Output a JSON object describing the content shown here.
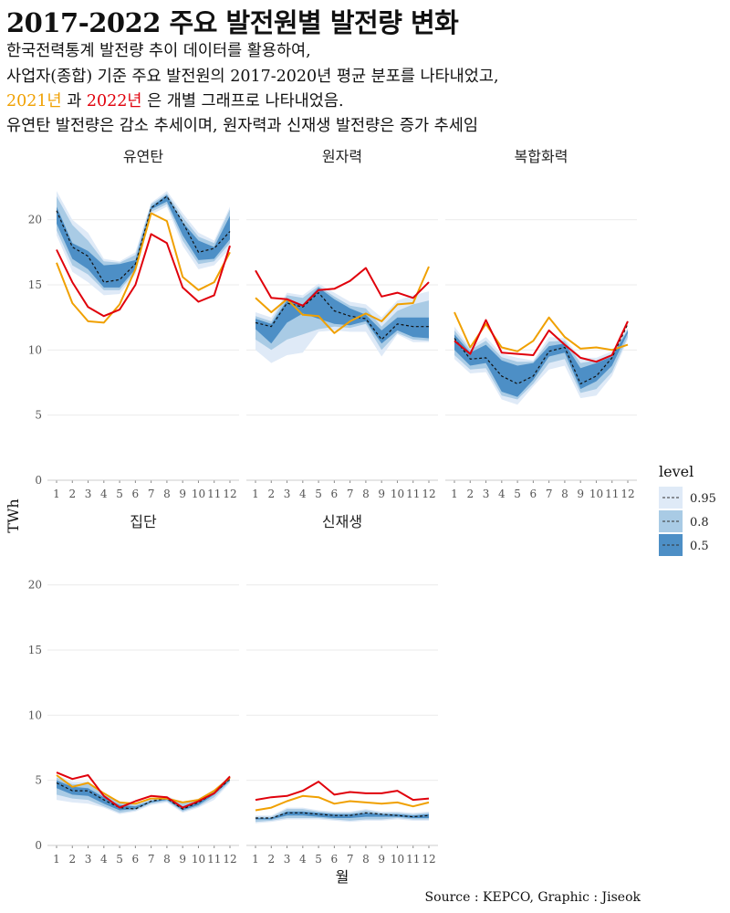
{
  "header": {
    "title": "2017-2022 주요 발전원별 발전량 변화",
    "subtitle_line1": "한국전력통계 발전량 추이 데이터를 활용하여,",
    "subtitle_line2": "사업자(종합) 기준 주요 발전원의 2017-2020년  평균 분포를 나타내었고,",
    "subtitle_line3_2021": "2021년",
    "subtitle_line3_mid": " 과  ",
    "subtitle_line3_2022": "2022년",
    "subtitle_line3_end": " 은 개별 그래프로 나타내었음.",
    "subtitle_line4": "유연탄 발전량은 감소 추세이며, 원자력과 신재생 발전량은 증가 추세임"
  },
  "caption": "Source : KEPCO, Graphic : Jiseok",
  "colors": {
    "band95": "#dfeaf7",
    "band80": "#a9cbe5",
    "band50": "#4d8fc6",
    "median": "#111111",
    "y2021": "#f0a000",
    "y2022": "#e0000b",
    "grid": "#ebebeb"
  },
  "chart_data": {
    "type": "line",
    "xlabel": "월",
    "ylabel": "TWh",
    "x": [
      1,
      2,
      3,
      4,
      5,
      6,
      7,
      8,
      9,
      10,
      11,
      12
    ],
    "x_tick_labels": [
      "1",
      "2",
      "3",
      "4",
      "5",
      "6",
      "7",
      "8",
      "9",
      "10",
      "11",
      "12"
    ],
    "ylim": [
      0,
      22.5
    ],
    "y_ticks": [
      0,
      5,
      10,
      15,
      20
    ],
    "grid": true,
    "legend": {
      "title": "level",
      "placement": "right",
      "entries": [
        "0.95",
        "0.8",
        "0.5"
      ]
    },
    "panels": [
      {
        "name": "유연탄",
        "series": [
          {
            "name": "0.95",
            "lower": [
              18.8,
              16.0,
              15.2,
              14.2,
              14.3,
              15.8,
              20.4,
              21.0,
              18.0,
              16.2,
              16.5,
              17.8
            ],
            "upper": [
              22.2,
              20.0,
              19.0,
              17.0,
              16.8,
              17.5,
              21.3,
              22.2,
              20.5,
              19.0,
              18.4,
              21.0
            ]
          },
          {
            "name": "0.8",
            "lower": [
              19.2,
              16.5,
              15.8,
              14.6,
              14.6,
              16.0,
              20.6,
              21.2,
              18.4,
              16.6,
              16.8,
              18.2
            ],
            "upper": [
              21.8,
              19.6,
              18.4,
              16.8,
              16.7,
              17.3,
              21.2,
              22.0,
              20.2,
              18.7,
              18.2,
              20.8
            ]
          },
          {
            "name": "0.5",
            "lower": [
              19.7,
              17.0,
              16.2,
              14.8,
              14.8,
              16.2,
              20.8,
              21.4,
              18.8,
              16.9,
              17.0,
              18.5
            ],
            "upper": [
              21.0,
              18.2,
              17.6,
              16.5,
              16.6,
              16.9,
              21.0,
              21.9,
              19.8,
              18.4,
              17.9,
              20.3
            ]
          },
          {
            "name": "median",
            "values": [
              20.7,
              17.9,
              17.2,
              15.2,
              15.4,
              16.6,
              20.9,
              21.8,
              19.8,
              17.5,
              17.8,
              19.1
            ]
          },
          {
            "name": "2021년",
            "values": [
              16.7,
              13.6,
              12.2,
              12.1,
              13.5,
              16.2,
              20.5,
              19.9,
              15.6,
              14.6,
              15.2,
              17.5
            ]
          },
          {
            "name": "2022년",
            "values": [
              17.7,
              15.2,
              13.3,
              12.6,
              13.1,
              15.0,
              18.9,
              18.2,
              14.8,
              13.7,
              14.2,
              18.0
            ]
          }
        ]
      },
      {
        "name": "원자력",
        "series": [
          {
            "name": "0.95",
            "lower": [
              10.0,
              9.0,
              9.6,
              9.8,
              11.4,
              11.5,
              11.4,
              11.4,
              9.5,
              11.2,
              10.6,
              10.6
            ],
            "upper": [
              12.9,
              12.5,
              14.4,
              14.2,
              15.1,
              14.4,
              13.7,
              13.5,
              12.5,
              13.8,
              14.2,
              14.5
            ]
          },
          {
            "name": "0.8",
            "lower": [
              10.8,
              10.0,
              10.8,
              11.2,
              11.6,
              11.8,
              11.7,
              12.0,
              10.0,
              11.3,
              10.8,
              10.7
            ],
            "upper": [
              12.6,
              12.2,
              14.2,
              14.0,
              14.9,
              14.1,
              13.4,
              13.2,
              11.8,
              13.0,
              13.5,
              13.8
            ]
          },
          {
            "name": "0.5",
            "lower": [
              11.6,
              10.5,
              12.1,
              12.8,
              12.4,
              12.0,
              11.9,
              12.2,
              10.5,
              11.5,
              11.0,
              10.9
            ],
            "upper": [
              12.4,
              12.0,
              13.8,
              13.5,
              14.8,
              13.9,
              13.2,
              12.7,
              11.5,
              12.5,
              12.5,
              12.5
            ]
          },
          {
            "name": "median",
            "values": [
              12.1,
              11.8,
              13.6,
              13.3,
              14.4,
              13.0,
              12.6,
              12.4,
              10.8,
              12.0,
              11.8,
              11.8
            ]
          },
          {
            "name": "2021년",
            "values": [
              14.0,
              12.9,
              13.9,
              12.7,
              12.6,
              11.3,
              12.2,
              12.8,
              12.2,
              13.5,
              13.6,
              16.4
            ]
          },
          {
            "name": "2022년",
            "values": [
              16.1,
              14.0,
              13.9,
              13.4,
              14.6,
              14.7,
              15.3,
              16.3,
              14.1,
              14.4,
              14.0,
              15.2
            ]
          }
        ]
      },
      {
        "name": "복합화력",
        "series": [
          {
            "name": "0.95",
            "lower": [
              9.3,
              8.2,
              8.3,
              6.2,
              5.8,
              7.2,
              8.5,
              8.8,
              6.3,
              6.5,
              8.0,
              10.8
            ],
            "upper": [
              11.8,
              10.2,
              11.0,
              9.7,
              9.4,
              9.2,
              11.0,
              10.9,
              9.4,
              9.4,
              9.9,
              11.7
            ]
          },
          {
            "name": "0.8",
            "lower": [
              9.6,
              8.5,
              8.6,
              6.5,
              6.2,
              7.4,
              9.0,
              9.3,
              6.7,
              7.0,
              8.3,
              11.0
            ]
          },
          {
            "name": "0.5",
            "lower": [
              10.0,
              8.8,
              9.0,
              6.8,
              6.4,
              7.7,
              9.5,
              9.8,
              7.0,
              7.6,
              8.8,
              11.3
            ],
            "upper": [
              11.2,
              9.8,
              10.4,
              9.2,
              8.8,
              9.0,
              10.3,
              10.5,
              8.6,
              9.0,
              9.5,
              11.5
            ]
          },
          {
            "name": "median",
            "values": [
              10.9,
              9.3,
              9.4,
              8.0,
              7.4,
              8.0,
              9.9,
              10.2,
              7.4,
              8.0,
              9.4,
              12.0
            ]
          },
          {
            "name": "2021년",
            "values": [
              12.9,
              10.2,
              12.0,
              10.2,
              9.9,
              10.7,
              12.5,
              11.0,
              10.1,
              10.2,
              10.0,
              10.4
            ]
          },
          {
            "name": "2022년",
            "values": [
              10.7,
              9.7,
              12.3,
              9.8,
              9.7,
              9.6,
              11.5,
              10.4,
              9.4,
              9.1,
              9.6,
              12.2
            ]
          }
        ]
      },
      {
        "name": "집단",
        "series": [
          {
            "name": "0.95",
            "lower": [
              3.5,
              3.3,
              3.2,
              2.9,
              2.4,
              2.6,
              3.1,
              3.3,
              2.5,
              2.9,
              3.5,
              4.8
            ],
            "upper": [
              5.4,
              4.9,
              4.9,
              4.0,
              3.4,
              3.2,
              3.6,
              3.8,
              3.3,
              3.6,
              4.3,
              5.4
            ]
          },
          {
            "name": "0.8",
            "lower": [
              3.9,
              3.6,
              3.5,
              3.0,
              2.5,
              2.7,
              3.2,
              3.4,
              2.6,
              3.0,
              3.7,
              4.9
            ],
            "upper": [
              5.2,
              4.7,
              4.7,
              3.9,
              3.3,
              3.1,
              3.5,
              3.7,
              3.2,
              3.5,
              4.2,
              5.3
            ]
          },
          {
            "name": "0.5",
            "lower": [
              4.4,
              3.9,
              3.8,
              3.2,
              2.7,
              2.8,
              3.3,
              3.5,
              2.7,
              3.1,
              3.9,
              5.0
            ],
            "upper": [
              5.0,
              4.5,
              4.4,
              3.7,
              3.1,
              3.0,
              3.4,
              3.6,
              3.0,
              3.4,
              4.1,
              5.2
            ]
          },
          {
            "name": "median",
            "values": [
              4.8,
              4.2,
              4.2,
              3.5,
              2.9,
              2.8,
              3.4,
              3.6,
              2.8,
              3.3,
              4.0,
              5.1
            ]
          },
          {
            "name": "2021년",
            "values": [
              5.4,
              4.5,
              4.8,
              4.0,
              3.3,
              3.2,
              3.6,
              3.6,
              3.3,
              3.5,
              4.2,
              5.2
            ]
          },
          {
            "name": "2022년",
            "values": [
              5.6,
              5.1,
              5.4,
              3.8,
              2.9,
              3.4,
              3.8,
              3.7,
              2.9,
              3.4,
              4.0,
              5.3
            ]
          }
        ]
      },
      {
        "name": "신재생",
        "series": [
          {
            "name": "0.95",
            "lower": [
              1.7,
              1.8,
              2.0,
              2.0,
              2.0,
              1.9,
              1.8,
              1.9,
              1.9,
              2.0,
              1.9,
              1.9
            ],
            "upper": [
              2.3,
              2.3,
              2.9,
              2.9,
              2.7,
              2.6,
              2.6,
              2.8,
              2.6,
              2.6,
              2.5,
              2.6
            ]
          },
          {
            "name": "0.8",
            "lower": [
              1.8,
              1.9,
              2.1,
              2.1,
              2.1,
              2.0,
              1.9,
              2.0,
              2.0,
              2.1,
              2.0,
              2.0
            ],
            "upper": [
              2.2,
              2.2,
              2.8,
              2.8,
              2.6,
              2.5,
              2.5,
              2.7,
              2.5,
              2.5,
              2.4,
              2.5
            ]
          },
          {
            "name": "0.5",
            "lower": [
              2.0,
              2.0,
              2.3,
              2.3,
              2.2,
              2.1,
              2.1,
              2.2,
              2.2,
              2.2,
              2.1,
              2.1
            ],
            "upper": [
              2.1,
              2.1,
              2.6,
              2.6,
              2.5,
              2.4,
              2.4,
              2.5,
              2.4,
              2.4,
              2.3,
              2.4
            ]
          },
          {
            "name": "median",
            "values": [
              2.1,
              2.1,
              2.5,
              2.5,
              2.4,
              2.3,
              2.3,
              2.5,
              2.4,
              2.3,
              2.2,
              2.3
            ]
          },
          {
            "name": "2021년",
            "values": [
              2.7,
              2.9,
              3.4,
              3.8,
              3.7,
              3.2,
              3.4,
              3.3,
              3.2,
              3.3,
              3.0,
              3.3
            ]
          },
          {
            "name": "2022년",
            "values": [
              3.5,
              3.7,
              3.8,
              4.2,
              4.9,
              3.9,
              4.1,
              4.0,
              4.0,
              4.2,
              3.5,
              3.6
            ]
          }
        ]
      }
    ]
  }
}
